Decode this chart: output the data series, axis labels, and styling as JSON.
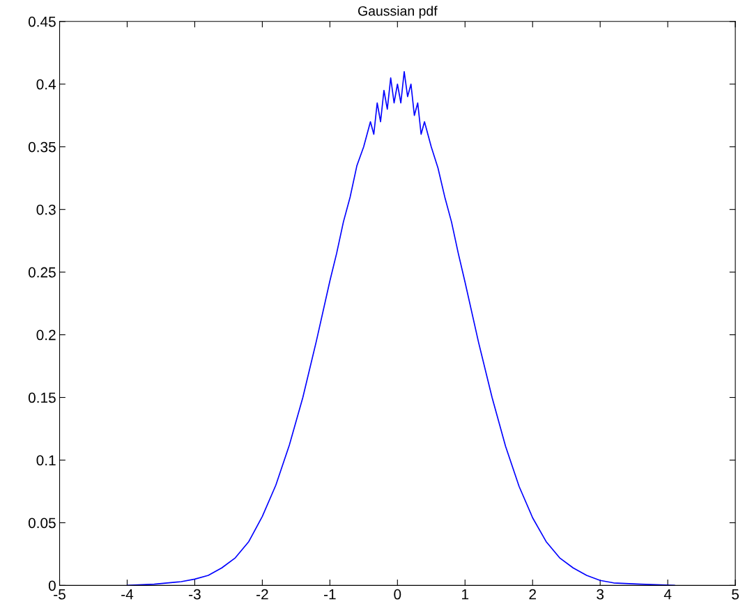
{
  "chart_data": {
    "type": "line",
    "title": "Gaussian pdf",
    "x": [
      -4.0,
      -3.6,
      -3.2,
      -3.0,
      -2.8,
      -2.6,
      -2.4,
      -2.2,
      -2.0,
      -1.8,
      -1.6,
      -1.4,
      -1.2,
      -1.0,
      -0.9,
      -0.8,
      -0.7,
      -0.6,
      -0.5,
      -0.4,
      -0.35,
      -0.3,
      -0.25,
      -0.2,
      -0.15,
      -0.1,
      -0.05,
      0.0,
      0.05,
      0.1,
      0.15,
      0.2,
      0.25,
      0.3,
      0.35,
      0.4,
      0.5,
      0.6,
      0.7,
      0.8,
      0.9,
      1.0,
      1.2,
      1.4,
      1.6,
      1.8,
      2.0,
      2.2,
      2.4,
      2.6,
      2.8,
      3.0,
      3.2,
      3.6,
      4.1
    ],
    "series": [
      {
        "color": "#0000ff",
        "values": [
          0.0,
          0.001,
          0.003,
          0.005,
          0.008,
          0.014,
          0.022,
          0.035,
          0.055,
          0.08,
          0.112,
          0.15,
          0.195,
          0.243,
          0.265,
          0.29,
          0.31,
          0.335,
          0.35,
          0.37,
          0.36,
          0.385,
          0.37,
          0.395,
          0.38,
          0.405,
          0.385,
          0.4,
          0.385,
          0.41,
          0.39,
          0.4,
          0.375,
          0.385,
          0.36,
          0.37,
          0.35,
          0.333,
          0.31,
          0.29,
          0.265,
          0.242,
          0.194,
          0.15,
          0.111,
          0.079,
          0.054,
          0.035,
          0.022,
          0.014,
          0.008,
          0.004,
          0.002,
          0.001,
          0.0
        ]
      }
    ],
    "xlim": [
      -5,
      5
    ],
    "ylim": [
      0,
      0.45
    ],
    "xticks": [
      {
        "value": -5,
        "label": "-5"
      },
      {
        "value": -4,
        "label": "-4"
      },
      {
        "value": -3,
        "label": "-3"
      },
      {
        "value": -2,
        "label": "-2"
      },
      {
        "value": -1,
        "label": "-1"
      },
      0,
      1,
      2,
      3,
      4,
      5
    ],
    "yticks": [
      0,
      0.05,
      0.1,
      0.15,
      0.2,
      0.25,
      0.3,
      0.35,
      0.4,
      0.45
    ],
    "grid": false,
    "legend": false,
    "marker": "none",
    "line_style": "solid"
  }
}
